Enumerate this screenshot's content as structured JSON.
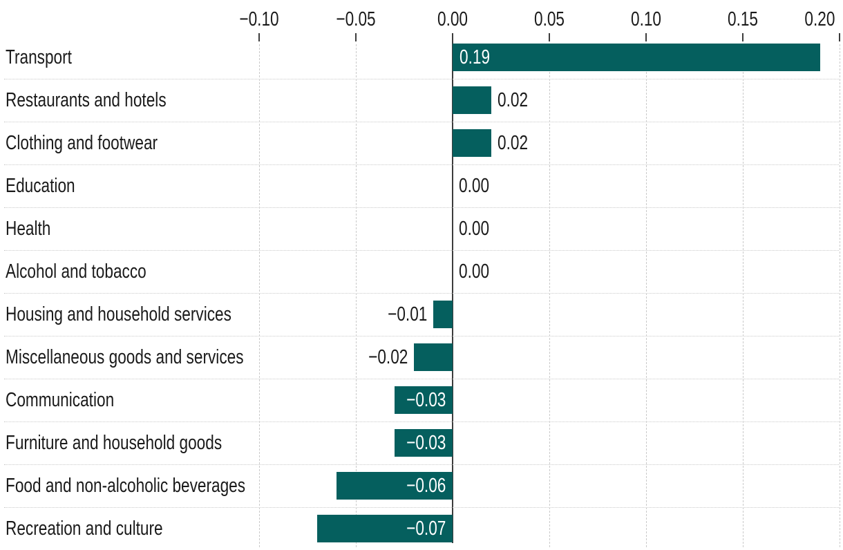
{
  "chart_data": {
    "type": "bar",
    "orientation": "horizontal",
    "categories": [
      "Transport",
      "Restaurants and hotels",
      "Clothing and footwear",
      "Education",
      "Health",
      "Alcohol and tobacco",
      "Housing and household services",
      "Miscellaneous goods and services",
      "Communication",
      "Furniture and household goods",
      "Food and non-alcoholic beverages",
      "Recreation and culture"
    ],
    "values": [
      0.19,
      0.02,
      0.02,
      0.0,
      0.0,
      0.0,
      -0.01,
      -0.02,
      -0.03,
      -0.03,
      -0.06,
      -0.07
    ],
    "value_labels": [
      "0.19",
      "0.02",
      "0.02",
      "0.00",
      "0.00",
      "0.00",
      "−0.01",
      "−0.02",
      "−0.03",
      "−0.03",
      "−0.06",
      "−0.07"
    ],
    "x_ticks": [
      {
        "value": -0.1,
        "label": "−0.10"
      },
      {
        "value": -0.05,
        "label": "−0.05"
      },
      {
        "value": 0.0,
        "label": "0.00"
      },
      {
        "value": 0.05,
        "label": "0.05"
      },
      {
        "value": 0.1,
        "label": "0.10"
      },
      {
        "value": 0.15,
        "label": "0.15"
      },
      {
        "value": 0.2,
        "label": "0.20"
      }
    ],
    "xlim": [
      -0.1,
      0.2
    ],
    "grid": "vertical dashed gridlines at ticks, dotted horizontal row separators, solid zero line",
    "legend": "none",
    "colors": {
      "bar": "#055f5e",
      "label_inside": "#ffffff",
      "label_outside": "#1a1a1a",
      "axis_text": "#1a1a1a",
      "zero_line": "#3c3c3c",
      "gridline": "#c9c9c9"
    }
  }
}
